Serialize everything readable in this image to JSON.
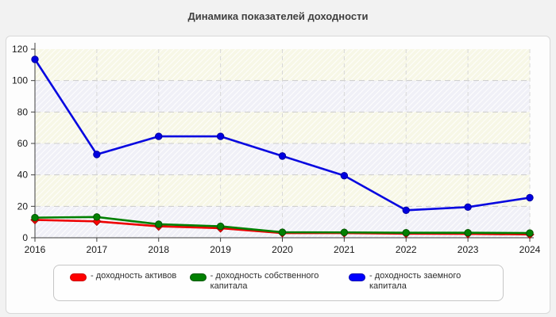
{
  "page": {
    "title": "Динамика показателей доходности"
  },
  "chart_data": {
    "type": "line",
    "title": "Динамика показателей доходности",
    "x": [
      2016,
      2017,
      2018,
      2019,
      2020,
      2021,
      2022,
      2023,
      2024
    ],
    "series": [
      {
        "name": "доходность активов",
        "color": "#ee0000",
        "marker_fill": "#ff0000",
        "marker_stroke": "#aa0000",
        "marker": "diamond",
        "values": [
          11.4,
          10.4,
          7.3,
          6.1,
          3.0,
          3.0,
          2.6,
          2.5,
          2.1
        ]
      },
      {
        "name": "доходность собственного капитала",
        "color": "#008000",
        "marker_fill": "#038003",
        "marker_stroke": "#005500",
        "marker": "circle",
        "values": [
          12.8,
          13.2,
          8.6,
          7.3,
          3.5,
          3.4,
          3.2,
          3.2,
          3.0
        ]
      },
      {
        "name": "доходность заемного капитала",
        "color": "#0808e0",
        "marker_fill": "#0000e0",
        "marker_stroke": "#0000a0",
        "marker": "circle",
        "values": [
          113.5,
          53.0,
          64.5,
          64.5,
          52.0,
          39.5,
          17.5,
          19.5,
          25.5
        ]
      }
    ],
    "xlabel": "",
    "ylabel": "",
    "ylim": [
      0,
      120
    ],
    "ytick_step": 20,
    "grid": true,
    "legend_position": "bottom"
  },
  "legend": {
    "items": [
      {
        "label": "- доходность активов",
        "color": "#ff0000",
        "border": "#cc0000"
      },
      {
        "label": "- доходность собственного капитала",
        "color": "#008000",
        "border": "#005500"
      },
      {
        "label": "- доходность заемного капитала",
        "color": "#0000ff",
        "border": "#0000b0"
      }
    ]
  }
}
